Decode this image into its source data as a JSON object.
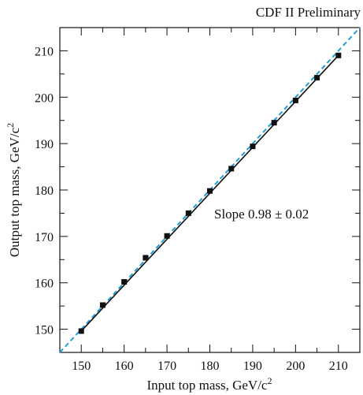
{
  "chart_data": {
    "type": "scatter",
    "title": "CDF II Preliminary",
    "xlabel": "Input top mass, GeV/c",
    "ylabel": "Output top mass, GeV/c",
    "label_superscript": "2",
    "xlim": [
      145,
      215
    ],
    "ylim": [
      145,
      215
    ],
    "xticks": [
      150,
      160,
      170,
      180,
      190,
      200,
      210
    ],
    "yticks": [
      150,
      160,
      170,
      180,
      190,
      200,
      210
    ],
    "x": [
      150,
      155,
      160,
      165,
      170,
      175,
      180,
      185,
      190,
      195,
      200,
      205,
      210
    ],
    "y": [
      149.6,
      155.2,
      160.2,
      165.4,
      170.1,
      175.0,
      179.8,
      184.6,
      189.4,
      194.5,
      199.3,
      204.2,
      209.0
    ],
    "fit": {
      "slope": 0.98,
      "intercept_at": 150,
      "start_y": 149.6,
      "end_x": 210,
      "end_y": 209.0
    },
    "reference_line": {
      "style": "dashed",
      "color": "#1ea0d7",
      "from": [
        145,
        145
      ],
      "to": [
        215,
        215
      ]
    },
    "annotation": "Slope 0.98 ± 0.02",
    "grid": false,
    "legend": "none",
    "marker_color": "#111111",
    "fit_color": "#111111"
  }
}
